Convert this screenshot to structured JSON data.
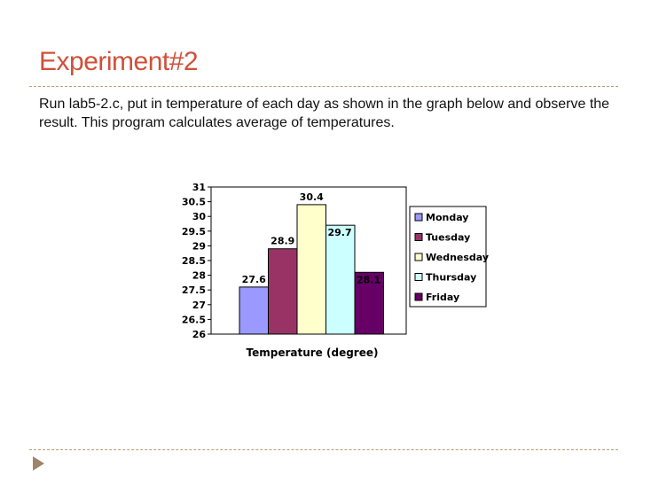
{
  "slide": {
    "title": "Experiment#2",
    "body": "Run lab5-2.c, put in temperature of each day as shown in the graph below and observe the result. This program calculates average of temperatures."
  },
  "colors": {
    "title": "#d0503a",
    "rule": "#b89a74",
    "arrow": "#a08468"
  },
  "chart_data": {
    "type": "bar",
    "categories": [
      "Temperature (degree)"
    ],
    "xlabel": "Temperature (degree)",
    "ylabel": "",
    "ylim": [
      26,
      31
    ],
    "yticks": [
      "26",
      "26.5",
      "27",
      "27.5",
      "28",
      "28.5",
      "29",
      "29.5",
      "30",
      "30.5",
      "31"
    ],
    "grid": false,
    "legend_position": "right",
    "series": [
      {
        "name": "Monday",
        "values": [
          27.6
        ],
        "label": "27.6",
        "color": "#9999ff"
      },
      {
        "name": "Tuesday",
        "values": [
          28.9
        ],
        "label": "28.9",
        "color": "#993366"
      },
      {
        "name": "Wednesday",
        "values": [
          30.4
        ],
        "label": "30.4",
        "color": "#ffffcc"
      },
      {
        "name": "Thursday",
        "values": [
          29.7
        ],
        "label": "29.7",
        "color": "#ccffff"
      },
      {
        "name": "Friday",
        "values": [
          28.1
        ],
        "label": "28.1",
        "color": "#660066"
      }
    ]
  }
}
